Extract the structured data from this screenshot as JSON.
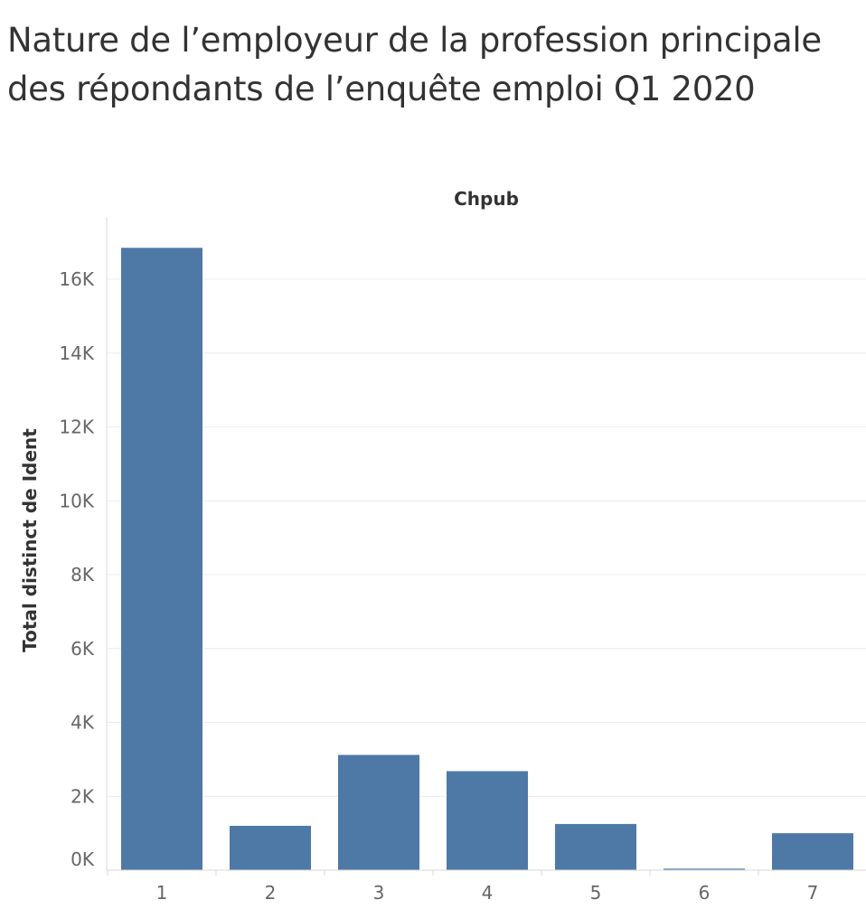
{
  "title_lines": [
    "Nature de l’employeur de la profession principale",
    "des répondants de l’enquête emploi Q1 2020"
  ],
  "chart_data": {
    "type": "bar",
    "title": "Nature de l’employeur de la profession principale des répondants de l’enquête emploi Q1 2020",
    "column_header": "Chpub",
    "xlabel": "",
    "ylabel": "Total distinct de Ident",
    "categories": [
      "1",
      "2",
      "3",
      "4",
      "5",
      "6",
      "7"
    ],
    "values": [
      16850,
      1200,
      3120,
      2680,
      1250,
      40,
      1000
    ],
    "ylim": [
      0,
      17000
    ],
    "yticks": [
      0,
      2000,
      4000,
      6000,
      8000,
      10000,
      12000,
      14000,
      16000
    ],
    "ytick_labels": [
      "0K",
      "2K",
      "4K",
      "6K",
      "8K",
      "10K",
      "12K",
      "14K",
      "16K"
    ],
    "grid": true,
    "bar_color": "#4e79a7"
  }
}
